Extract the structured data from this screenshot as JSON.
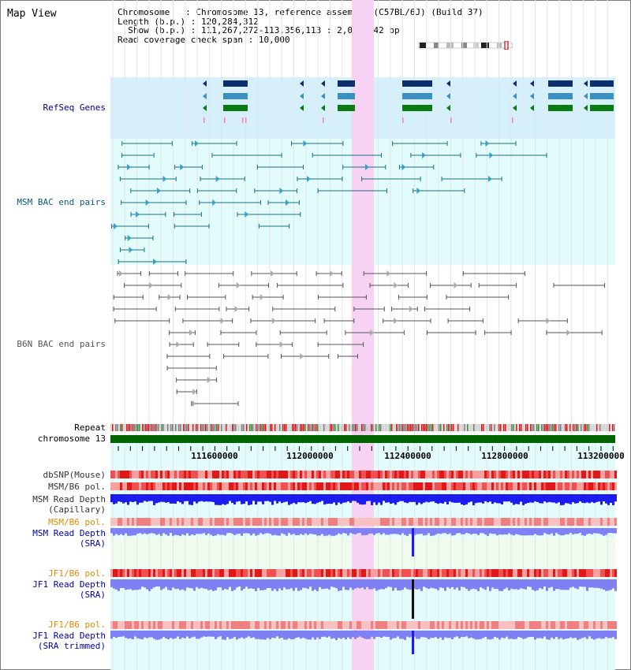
{
  "page_title": "Map View",
  "info": {
    "chromosome_label": "Chromosome",
    "chromosome_value": "Chromosome 13, reference assembly (C57BL/6J) (Build 37)",
    "length_label": "Length (b.p.)",
    "length_value": "120,284,312",
    "show_label": "Show (b.p.)",
    "show_value": "111,267,272-113,356,113 : 2,088,842 bp",
    "coverage_label": "Read coverage check span",
    "coverage_value": "10,000"
  },
  "tracks": {
    "refseq": "RefSeq Genes",
    "msm_bac": "MSM BAC end pairs",
    "b6n_bac": "B6N BAC end pairs",
    "repeat": "Repeat",
    "chromosome": "chromosome 13",
    "dbsnp": "dbSNP(Mouse)",
    "msm_b6_pol_1": "MSM/B6 pol.",
    "msm_read_depth_cap_1": "MSM Read Depth",
    "msm_read_depth_cap_2": "(Capillary)",
    "msm_b6_pol_2": "MSM/B6 pol.",
    "msm_read_depth_sra_1": "MSM Read Depth",
    "msm_read_depth_sra_2": "(SRA)",
    "jf1_b6_pol_1": "JF1/B6 pol.",
    "jf1_read_depth_sra_1": "JF1 Read Depth",
    "jf1_read_depth_sra_2": "(SRA)",
    "jf1_b6_pol_2": "JF1/B6 pol.",
    "jf1_read_depth_trim_1": "JF1 Read Depth",
    "jf1_read_depth_trim_2": "(SRA trimmed)"
  },
  "axis": {
    "ticks": [
      "111600000",
      "112000000",
      "112400000",
      "112800000",
      "113200000"
    ]
  },
  "colors": {
    "highlight": "#f7d2f2",
    "refseq_bg": "#d6f0fb",
    "bac_bg": "#e2fbfb",
    "gene_dark": "#0d2f6e",
    "gene_mid": "#3d8fbf",
    "gene_green": "#0a7a12",
    "msm_bac_line": "#1a6f86",
    "b6n_bac_line": "#555555",
    "chromosome_bar": "#006400",
    "depth_blue": "#1c1cf0",
    "depth_light": "#8080f5",
    "pol_red": "#ee3333"
  }
}
